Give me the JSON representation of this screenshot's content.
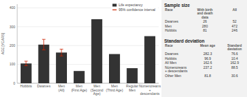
{
  "chart_data": {
    "type": "bar",
    "categories": [
      "Hobbits",
      "Dwarves",
      "Men\n(All)",
      "Men\n(First Age)",
      "Men\n(Second\nAge)",
      "Men\n(Third Age)",
      "Regular\nMen",
      "Númenoreans\n+\ndescendants"
    ],
    "series": [
      {
        "name": "Life expectancy",
        "color": "#333333",
        "values": [
          105,
          205,
          163,
          65,
          340,
          155,
          80,
          250
        ],
        "error_bars": [
          12,
          28,
          18,
          0,
          0,
          0,
          0,
          0
        ],
        "error_bar_name": "95% confidence interval",
        "error_bar_color": "#cc2200"
      }
    ],
    "y_label": "AGE [YEARS]",
    "ylim": [
      0,
      420
    ],
    "yticks": [
      0,
      100,
      200,
      300,
      400
    ],
    "grid": true,
    "legend": "upper right"
  },
  "panel": {
    "tables": [
      {
        "title": "Sample size",
        "columns": [
          "Race",
          "With birth\nand death\ndata",
          "All"
        ],
        "rows": [
          [
            "Dwarves",
            "26",
            "52"
          ],
          [
            "Men",
            "280",
            "472"
          ],
          [
            "Hobbits",
            "81",
            "246"
          ]
        ]
      },
      {
        "title": "Standard deviation",
        "columns": [
          "Race",
          "Mean age",
          "Standard\ndeviation"
        ],
        "rows": [
          [
            "Dwarves",
            "282.3",
            "76.6"
          ],
          [
            "Hobbits",
            "96.9",
            "10.4"
          ],
          [
            "All Men",
            "162.6",
            "162.9"
          ],
          [
            "Númenoreans\n+ descendants",
            "237.2",
            "88.5"
          ],
          [
            "Other Men",
            "81.8",
            "30.6"
          ]
        ]
      }
    ]
  }
}
